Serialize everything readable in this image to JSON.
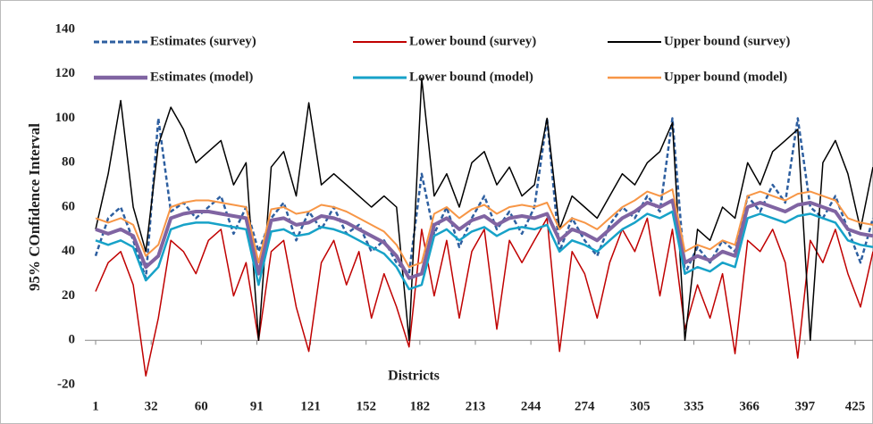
{
  "chart_data": {
    "type": "line",
    "x_label": "Districts",
    "y_label": "95% COnfidence Interval",
    "x": [
      1,
      8,
      15,
      22,
      29,
      36,
      43,
      50,
      57,
      64,
      71,
      78,
      85,
      92,
      99,
      106,
      113,
      120,
      127,
      134,
      141,
      148,
      155,
      162,
      169,
      176,
      183,
      190,
      197,
      204,
      211,
      218,
      225,
      232,
      239,
      246,
      253,
      260,
      267,
      274,
      281,
      288,
      295,
      302,
      309,
      316,
      323,
      330,
      337,
      344,
      351,
      358,
      365,
      372,
      379,
      386,
      393,
      400,
      407,
      414,
      421,
      428,
      435
    ],
    "xlim": [
      -5,
      435
    ],
    "xticks": [
      1,
      32,
      60,
      91,
      121,
      152,
      182,
      213,
      244,
      274,
      305,
      335,
      366,
      397,
      425
    ],
    "ylim": [
      -20,
      140
    ],
    "yticks": [
      -20,
      0,
      20,
      40,
      60,
      80,
      100,
      120,
      140
    ],
    "grid": false,
    "series": [
      {
        "name": "Estimates (survey)",
        "color": "#2e5fa0",
        "width": 2.5,
        "dash": true,
        "values": [
          38,
          55,
          60,
          45,
          28,
          100,
          58,
          62,
          55,
          60,
          65,
          48,
          60,
          40,
          55,
          62,
          45,
          58,
          50,
          60,
          48,
          52,
          40,
          45,
          35,
          30,
          75,
          48,
          60,
          42,
          55,
          65,
          50,
          58,
          48,
          60,
          100,
          40,
          55,
          45,
          38,
          52,
          60,
          55,
          65,
          58,
          100,
          30,
          42,
          35,
          45,
          40,
          65,
          58,
          70,
          62,
          100,
          60,
          55,
          65,
          50,
          35,
          55
        ]
      },
      {
        "name": "Lower bound (survey)",
        "color": "#c00000",
        "width": 1.5,
        "dash": false,
        "values": [
          22,
          35,
          40,
          25,
          -16,
          10,
          45,
          40,
          30,
          45,
          50,
          20,
          35,
          0,
          40,
          45,
          15,
          -5,
          35,
          45,
          25,
          40,
          10,
          30,
          15,
          -3,
          50,
          20,
          45,
          10,
          40,
          50,
          5,
          45,
          35,
          45,
          55,
          -5,
          40,
          30,
          10,
          35,
          50,
          40,
          55,
          20,
          50,
          5,
          25,
          10,
          30,
          -6,
          45,
          40,
          50,
          35,
          -8,
          45,
          35,
          50,
          30,
          15,
          40
        ]
      },
      {
        "name": "Upper bound (survey)",
        "color": "#000000",
        "width": 1.5,
        "dash": false,
        "values": [
          50,
          75,
          108,
          60,
          40,
          88,
          105,
          95,
          80,
          85,
          90,
          70,
          80,
          0,
          78,
          85,
          65,
          107,
          70,
          75,
          70,
          65,
          60,
          65,
          60,
          0,
          118,
          65,
          75,
          60,
          80,
          85,
          70,
          78,
          65,
          70,
          100,
          50,
          65,
          60,
          55,
          65,
          75,
          70,
          80,
          85,
          98,
          0,
          50,
          45,
          60,
          55,
          80,
          70,
          85,
          90,
          95,
          0,
          80,
          90,
          75,
          50,
          78
        ]
      },
      {
        "name": "Estimates (model)",
        "color": "#8064a2",
        "width": 4,
        "dash": false,
        "values": [
          50,
          48,
          50,
          47,
          33,
          38,
          55,
          57,
          58,
          58,
          57,
          56,
          55,
          30,
          54,
          55,
          52,
          53,
          56,
          55,
          53,
          50,
          47,
          44,
          38,
          28,
          30,
          52,
          55,
          50,
          54,
          56,
          52,
          55,
          56,
          55,
          57,
          45,
          50,
          48,
          45,
          50,
          55,
          58,
          62,
          60,
          63,
          35,
          38,
          36,
          40,
          38,
          60,
          62,
          60,
          58,
          61,
          62,
          60,
          58,
          50,
          48,
          47
        ]
      },
      {
        "name": "Lower bound (model)",
        "color": "#17a2c8",
        "width": 2.5,
        "dash": false,
        "values": [
          45,
          43,
          45,
          42,
          27,
          33,
          50,
          52,
          53,
          53,
          52,
          51,
          50,
          25,
          49,
          50,
          47,
          48,
          51,
          50,
          48,
          45,
          42,
          39,
          33,
          23,
          25,
          47,
          50,
          45,
          49,
          51,
          47,
          50,
          51,
          50,
          52,
          40,
          45,
          43,
          40,
          45,
          50,
          53,
          57,
          55,
          58,
          30,
          33,
          31,
          35,
          33,
          55,
          57,
          55,
          53,
          56,
          57,
          55,
          53,
          45,
          43,
          42
        ]
      },
      {
        "name": "Upper bound (model)",
        "color": "#f79646",
        "width": 2,
        "dash": false,
        "values": [
          55,
          53,
          55,
          52,
          38,
          43,
          60,
          62,
          63,
          63,
          62,
          61,
          60,
          35,
          59,
          60,
          57,
          58,
          61,
          60,
          58,
          55,
          52,
          49,
          43,
          33,
          35,
          57,
          60,
          55,
          59,
          61,
          57,
          60,
          61,
          60,
          62,
          50,
          55,
          53,
          50,
          55,
          60,
          63,
          67,
          65,
          68,
          40,
          43,
          41,
          45,
          43,
          65,
          67,
          65,
          63,
          66,
          67,
          65,
          63,
          55,
          53,
          52
        ]
      }
    ]
  }
}
